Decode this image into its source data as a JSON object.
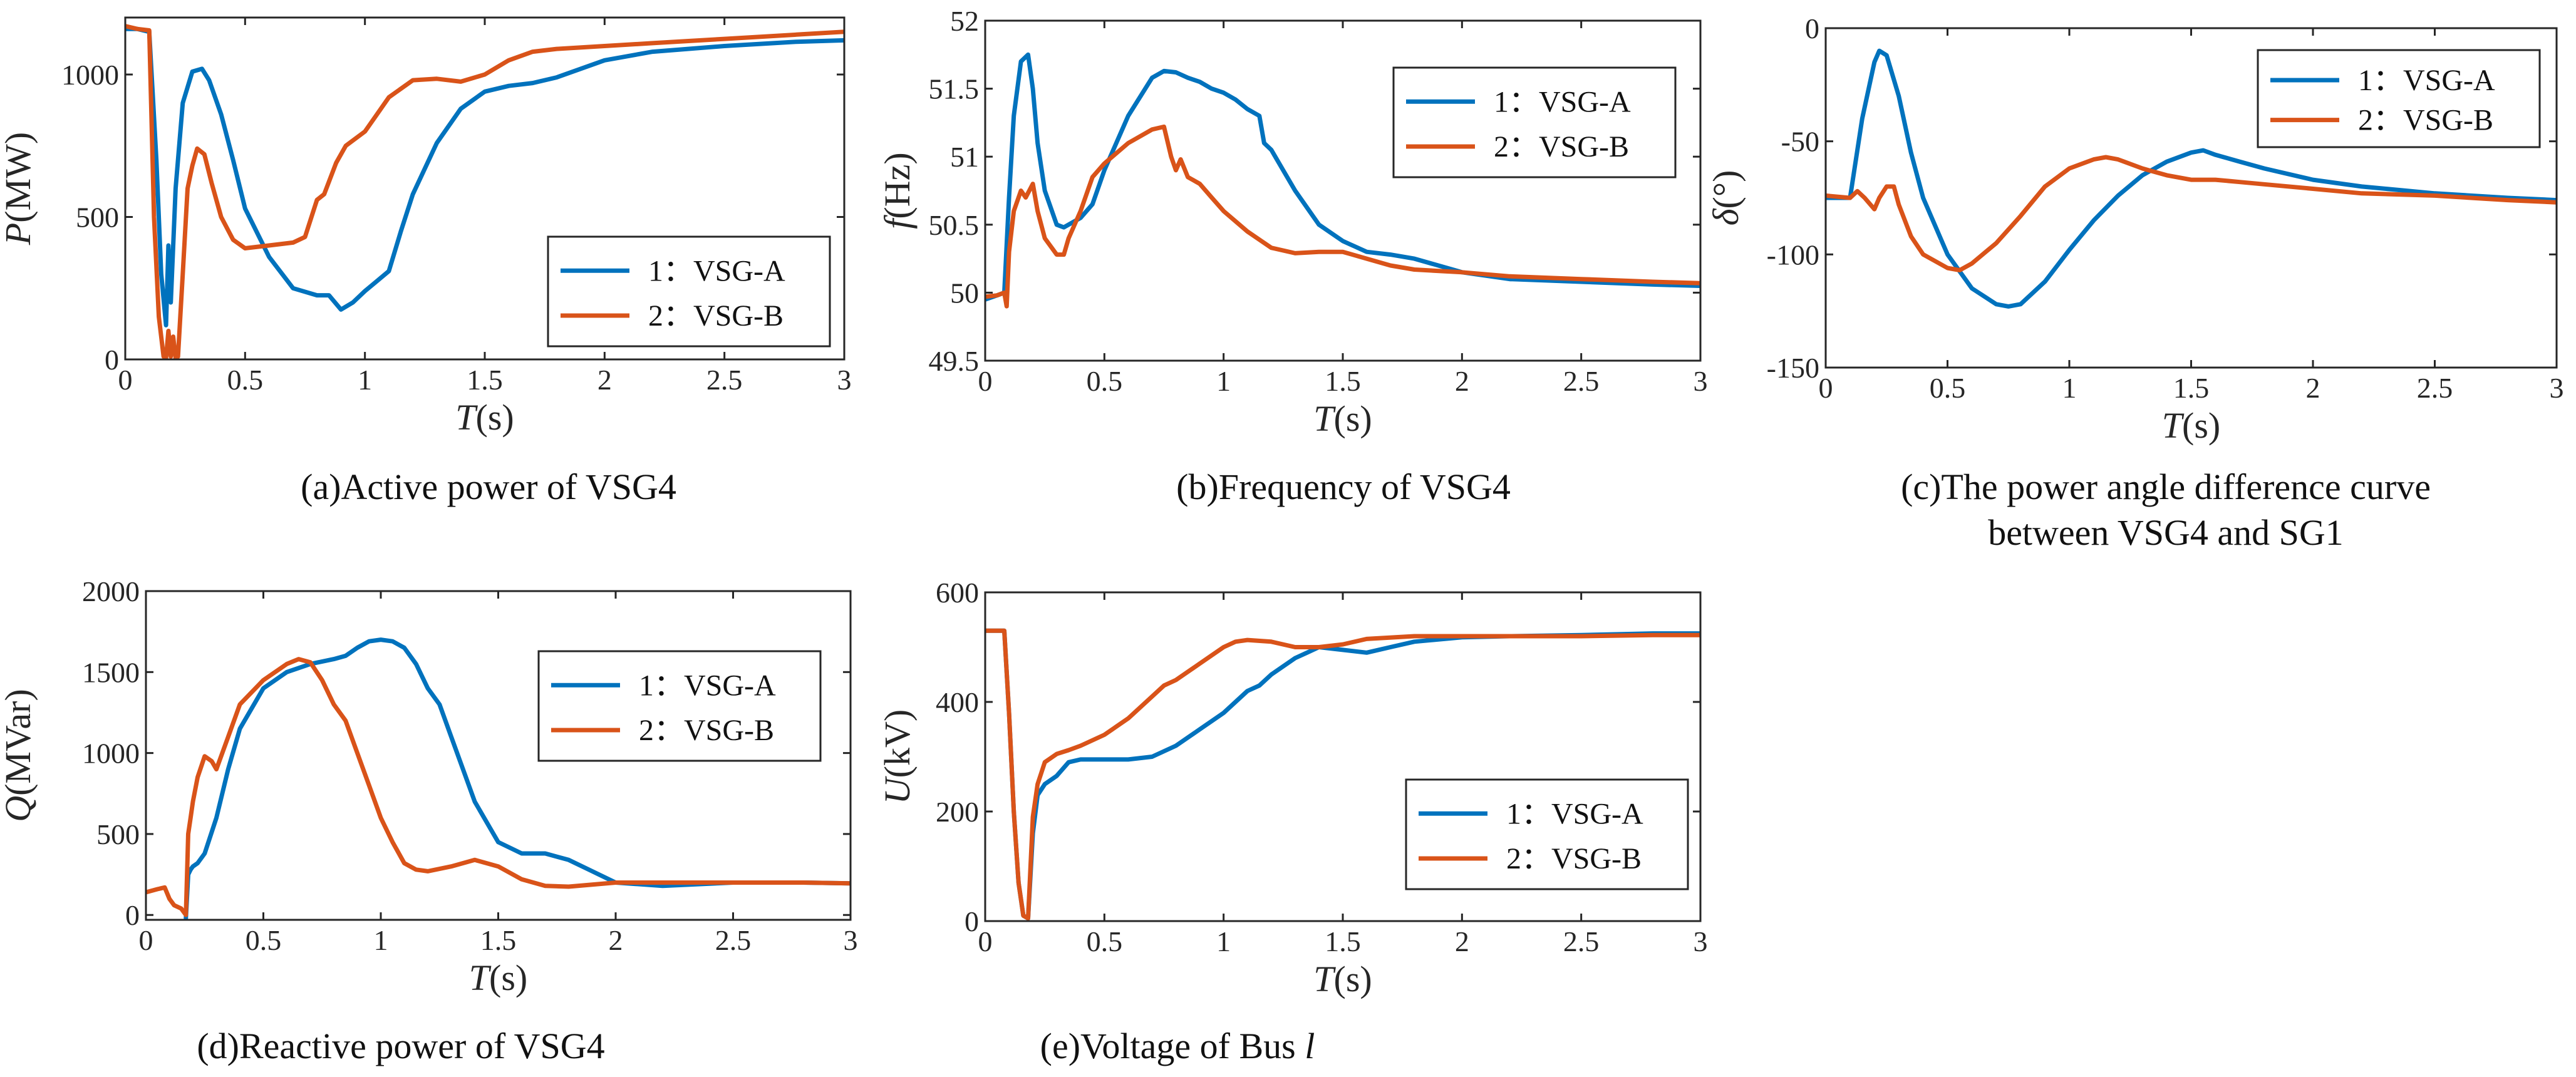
{
  "colors": {
    "series_a": "#0072BD",
    "series_b": "#D95319"
  },
  "chart_data": [
    {
      "id": "a",
      "type": "line",
      "caption": "(a)Active power of VSG4",
      "xlabel": {
        "symbol": "T",
        "unit": "(s)"
      },
      "ylabel": {
        "symbol": "P",
        "unit": "(MW)"
      },
      "xlim": [
        0,
        3
      ],
      "ylim": [
        0,
        1200
      ],
      "xticks": [
        0,
        0.5,
        1,
        1.5,
        2,
        2.5,
        3
      ],
      "xtick_labels": [
        "0",
        "0.5",
        "1",
        "1.5",
        "2",
        "2.5",
        "3"
      ],
      "yticks": [
        0,
        500,
        1000
      ],
      "ytick_labels": [
        "0",
        "500",
        "1000"
      ],
      "legend": {
        "position": "lower-right",
        "entries": [
          "1：VSG-A",
          "2：VSG-B"
        ]
      },
      "series": [
        {
          "name": "1：VSG-A",
          "x": [
            0,
            0.05,
            0.1,
            0.13,
            0.15,
            0.17,
            0.18,
            0.19,
            0.21,
            0.24,
            0.28,
            0.32,
            0.35,
            0.4,
            0.45,
            0.5,
            0.6,
            0.7,
            0.8,
            0.85,
            0.9,
            0.95,
            1.0,
            1.05,
            1.1,
            1.15,
            1.2,
            1.3,
            1.4,
            1.5,
            1.6,
            1.7,
            1.8,
            2.0,
            2.2,
            2.5,
            2.8,
            3.0
          ],
          "y": [
            1160,
            1160,
            1150,
            700,
            300,
            120,
            400,
            200,
            600,
            900,
            1010,
            1020,
            980,
            860,
            700,
            530,
            360,
            250,
            225,
            225,
            175,
            200,
            240,
            275,
            310,
            450,
            580,
            760,
            880,
            940,
            960,
            970,
            990,
            1050,
            1080,
            1100,
            1115,
            1120
          ]
        },
        {
          "name": "2：VSG-B",
          "x": [
            0,
            0.05,
            0.1,
            0.12,
            0.14,
            0.16,
            0.17,
            0.18,
            0.19,
            0.2,
            0.21,
            0.22,
            0.24,
            0.26,
            0.28,
            0.3,
            0.33,
            0.36,
            0.4,
            0.45,
            0.5,
            0.6,
            0.7,
            0.75,
            0.8,
            0.83,
            0.88,
            0.92,
            1.0,
            1.05,
            1.1,
            1.2,
            1.3,
            1.4,
            1.5,
            1.6,
            1.7,
            1.8,
            2.0,
            2.2,
            2.5,
            2.8,
            3.0
          ],
          "y": [
            1170,
            1160,
            1155,
            500,
            150,
            10,
            5,
            100,
            10,
            80,
            5,
            10,
            300,
            600,
            680,
            740,
            720,
            620,
            500,
            420,
            390,
            400,
            410,
            430,
            560,
            580,
            690,
            750,
            800,
            860,
            920,
            980,
            985,
            975,
            1000,
            1050,
            1080,
            1090,
            1100,
            1110,
            1125,
            1140,
            1150
          ]
        }
      ]
    },
    {
      "id": "b",
      "type": "line",
      "caption": "(b)Frequency of VSG4",
      "xlabel": {
        "symbol": "T",
        "unit": "(s)"
      },
      "ylabel": {
        "symbol": "f",
        "unit": "(Hz)"
      },
      "xlim": [
        0,
        3
      ],
      "ylim": [
        49.5,
        52
      ],
      "xticks": [
        0,
        0.5,
        1,
        1.5,
        2,
        2.5,
        3
      ],
      "xtick_labels": [
        "0",
        "0.5",
        "1",
        "1.5",
        "2",
        "2.5",
        "3"
      ],
      "yticks": [
        49.5,
        50,
        50.5,
        51,
        51.5,
        52
      ],
      "ytick_labels": [
        "49.5",
        "50",
        "50.5",
        "51",
        "51.5",
        "52"
      ],
      "legend": {
        "position": "top-right",
        "entries": [
          "1：VSG-A",
          "2：VSG-B"
        ]
      },
      "series": [
        {
          "name": "1：VSG-A",
          "x": [
            0,
            0.05,
            0.08,
            0.1,
            0.12,
            0.15,
            0.18,
            0.2,
            0.22,
            0.25,
            0.3,
            0.33,
            0.4,
            0.45,
            0.5,
            0.6,
            0.7,
            0.75,
            0.8,
            0.85,
            0.9,
            0.95,
            1.0,
            1.05,
            1.1,
            1.15,
            1.17,
            1.2,
            1.25,
            1.3,
            1.4,
            1.5,
            1.6,
            1.7,
            1.8,
            2.0,
            2.2,
            2.5,
            2.8,
            3.0
          ],
          "y": [
            49.95,
            49.98,
            50.0,
            50.7,
            51.3,
            51.7,
            51.75,
            51.5,
            51.1,
            50.75,
            50.5,
            50.48,
            50.55,
            50.65,
            50.9,
            51.3,
            51.58,
            51.63,
            51.62,
            51.58,
            51.55,
            51.5,
            51.47,
            51.42,
            51.35,
            51.3,
            51.1,
            51.05,
            50.9,
            50.75,
            50.5,
            50.38,
            50.3,
            50.28,
            50.25,
            50.15,
            50.1,
            50.08,
            50.06,
            50.05
          ]
        },
        {
          "name": "2：VSG-B",
          "x": [
            0,
            0.05,
            0.08,
            0.09,
            0.1,
            0.12,
            0.15,
            0.17,
            0.2,
            0.22,
            0.25,
            0.3,
            0.33,
            0.35,
            0.4,
            0.45,
            0.5,
            0.6,
            0.7,
            0.75,
            0.78,
            0.8,
            0.82,
            0.85,
            0.9,
            0.95,
            1.0,
            1.1,
            1.2,
            1.3,
            1.4,
            1.5,
            1.6,
            1.7,
            1.8,
            2.0,
            2.2,
            2.5,
            2.8,
            3.0
          ],
          "y": [
            49.97,
            49.98,
            50.0,
            49.9,
            50.3,
            50.6,
            50.75,
            50.7,
            50.8,
            50.6,
            50.4,
            50.28,
            50.28,
            50.4,
            50.6,
            50.85,
            50.95,
            51.1,
            51.2,
            51.22,
            51.0,
            50.9,
            50.98,
            50.85,
            50.8,
            50.7,
            50.6,
            50.45,
            50.33,
            50.29,
            50.3,
            50.3,
            50.25,
            50.2,
            50.17,
            50.15,
            50.12,
            50.1,
            50.08,
            50.07
          ]
        }
      ]
    },
    {
      "id": "c",
      "type": "line",
      "caption": "(c)The power angle difference curve",
      "caption_line2": "between VSG4 and SG1",
      "xlabel": {
        "symbol": "T",
        "unit": "(s)"
      },
      "ylabel": {
        "symbol": "δ",
        "unit": "(°)"
      },
      "xlim": [
        0,
        3
      ],
      "ylim": [
        -150,
        0
      ],
      "xticks": [
        0,
        0.5,
        1,
        1.5,
        2,
        2.5,
        3
      ],
      "xtick_labels": [
        "0",
        "0.5",
        "1",
        "1.5",
        "2",
        "2.5",
        "3"
      ],
      "yticks": [
        -150,
        -100,
        -50,
        0
      ],
      "ytick_labels": [
        "-150",
        "-100",
        "-50",
        "0"
      ],
      "legend": {
        "position": "top-right",
        "entries": [
          "1：VSG-A",
          "2：VSG-B"
        ]
      },
      "series": [
        {
          "name": "1：VSG-A",
          "x": [
            0,
            0.05,
            0.1,
            0.15,
            0.2,
            0.22,
            0.25,
            0.3,
            0.35,
            0.4,
            0.5,
            0.6,
            0.7,
            0.75,
            0.8,
            0.9,
            1.0,
            1.1,
            1.2,
            1.3,
            1.4,
            1.5,
            1.55,
            1.6,
            1.7,
            1.8,
            2.0,
            2.2,
            2.5,
            2.8,
            3.0
          ],
          "y": [
            -75,
            -75,
            -75,
            -40,
            -15,
            -10,
            -12,
            -30,
            -55,
            -75,
            -100,
            -115,
            -122,
            -123,
            -122,
            -112,
            -98,
            -85,
            -74,
            -65,
            -59,
            -55,
            -54,
            -56,
            -59,
            -62,
            -67,
            -70,
            -73,
            -75,
            -76
          ]
        },
        {
          "name": "2：VSG-B",
          "x": [
            0,
            0.1,
            0.13,
            0.16,
            0.2,
            0.22,
            0.25,
            0.28,
            0.3,
            0.35,
            0.4,
            0.5,
            0.55,
            0.6,
            0.7,
            0.8,
            0.9,
            1.0,
            1.1,
            1.15,
            1.2,
            1.3,
            1.4,
            1.5,
            1.6,
            1.7,
            1.8,
            2.0,
            2.2,
            2.5,
            2.8,
            3.0
          ],
          "y": [
            -74,
            -75,
            -72,
            -75,
            -80,
            -75,
            -70,
            -70,
            -78,
            -92,
            -100,
            -106,
            -107,
            -104,
            -95,
            -83,
            -70,
            -62,
            -58,
            -57,
            -58,
            -62,
            -65,
            -67,
            -67,
            -68,
            -69,
            -71,
            -73,
            -74,
            -76,
            -77
          ]
        }
      ]
    },
    {
      "id": "d",
      "type": "line",
      "caption": "(d)Reactive power of VSG4",
      "xlabel": {
        "symbol": "T",
        "unit": "(s)"
      },
      "ylabel": {
        "symbol": "Q",
        "unit": "(MVar)"
      },
      "xlim": [
        0,
        3
      ],
      "ylim": [
        -30,
        2000
      ],
      "xticks": [
        0,
        0.5,
        1,
        1.5,
        2,
        2.5,
        3
      ],
      "xtick_labels": [
        "0",
        "0.5",
        "1",
        "1.5",
        "2",
        "2.5",
        "3"
      ],
      "yticks": [
        0,
        500,
        1000,
        1500,
        2000
      ],
      "ytick_labels": [
        "0",
        "500",
        "1000",
        "1500",
        "2000"
      ],
      "legend": {
        "position": "center-right",
        "entries": [
          "1：VSG-A",
          "2：VSG-B"
        ]
      },
      "series": [
        {
          "name": "1：VSG-A",
          "x": [
            0.17,
            0.18,
            0.19,
            0.2,
            0.22,
            0.25,
            0.3,
            0.35,
            0.4,
            0.5,
            0.6,
            0.7,
            0.8,
            0.85,
            0.9,
            0.95,
            1.0,
            1.05,
            1.1,
            1.15,
            1.2,
            1.25,
            1.3,
            1.4,
            1.5,
            1.6,
            1.7,
            1.8,
            1.9,
            2.0,
            2.2,
            2.5,
            2.8,
            3.0
          ],
          "y": [
            -20,
            250,
            280,
            300,
            320,
            380,
            600,
            900,
            1150,
            1400,
            1500,
            1550,
            1580,
            1600,
            1650,
            1690,
            1700,
            1690,
            1650,
            1550,
            1400,
            1300,
            1100,
            700,
            450,
            380,
            380,
            340,
            270,
            200,
            180,
            200,
            200,
            195
          ]
        },
        {
          "name": "2：VSG-B",
          "x": [
            0,
            0.05,
            0.08,
            0.1,
            0.12,
            0.15,
            0.17,
            0.18,
            0.19,
            0.2,
            0.22,
            0.25,
            0.28,
            0.3,
            0.35,
            0.4,
            0.5,
            0.6,
            0.65,
            0.7,
            0.75,
            0.8,
            0.85,
            0.9,
            0.95,
            1.0,
            1.05,
            1.1,
            1.15,
            1.2,
            1.3,
            1.4,
            1.5,
            1.6,
            1.7,
            1.8,
            2.0,
            2.2,
            2.5,
            2.8,
            3.0
          ],
          "y": [
            140,
            160,
            170,
            100,
            60,
            40,
            0,
            500,
            600,
            700,
            850,
            980,
            950,
            900,
            1100,
            1300,
            1450,
            1550,
            1580,
            1560,
            1450,
            1300,
            1200,
            1000,
            800,
            600,
            450,
            320,
            280,
            270,
            300,
            340,
            300,
            220,
            180,
            175,
            200,
            200,
            200,
            200,
            195
          ]
        }
      ]
    },
    {
      "id": "e",
      "type": "line",
      "caption": "(e)Voltage of Bus ",
      "caption_italic": "l",
      "xlabel": {
        "symbol": "T",
        "unit": "(s)"
      },
      "ylabel": {
        "symbol": "U",
        "unit": "(kV)"
      },
      "xlim": [
        0,
        3
      ],
      "ylim": [
        0,
        600
      ],
      "xticks": [
        0,
        0.5,
        1,
        1.5,
        2,
        2.5,
        3
      ],
      "xtick_labels": [
        "0",
        "0.5",
        "1",
        "1.5",
        "2",
        "2.5",
        "3"
      ],
      "yticks": [
        0,
        200,
        400,
        600
      ],
      "ytick_labels": [
        "0",
        "200",
        "400",
        "600"
      ],
      "legend": {
        "position": "lower-right",
        "entries": [
          "1：VSG-A",
          "2：VSG-B"
        ]
      },
      "series": [
        {
          "name": "1：VSG-A",
          "x": [
            0,
            0.05,
            0.08,
            0.1,
            0.12,
            0.14,
            0.16,
            0.18,
            0.2,
            0.22,
            0.25,
            0.3,
            0.35,
            0.4,
            0.5,
            0.6,
            0.7,
            0.8,
            0.9,
            1.0,
            1.1,
            1.15,
            1.2,
            1.3,
            1.35,
            1.4,
            1.5,
            1.6,
            1.7,
            1.8,
            2.0,
            2.2,
            2.5,
            2.8,
            3.0
          ],
          "y": [
            530,
            530,
            530,
            380,
            200,
            70,
            10,
            5,
            160,
            230,
            250,
            265,
            290,
            295,
            295,
            295,
            300,
            320,
            350,
            380,
            420,
            430,
            450,
            480,
            490,
            500,
            495,
            490,
            500,
            510,
            518,
            520,
            522,
            525,
            525
          ]
        },
        {
          "name": "2：VSG-B",
          "x": [
            0,
            0.05,
            0.08,
            0.1,
            0.12,
            0.14,
            0.16,
            0.18,
            0.2,
            0.22,
            0.25,
            0.3,
            0.35,
            0.4,
            0.5,
            0.6,
            0.7,
            0.75,
            0.8,
            0.9,
            1.0,
            1.05,
            1.1,
            1.2,
            1.3,
            1.4,
            1.5,
            1.6,
            1.8,
            2.0,
            2.2,
            2.5,
            2.8,
            3.0
          ],
          "y": [
            530,
            530,
            530,
            380,
            200,
            70,
            10,
            5,
            190,
            250,
            290,
            305,
            312,
            320,
            340,
            370,
            410,
            430,
            440,
            470,
            500,
            510,
            513,
            510,
            500,
            500,
            505,
            515,
            520,
            520,
            520,
            520,
            522,
            522
          ]
        }
      ]
    }
  ]
}
